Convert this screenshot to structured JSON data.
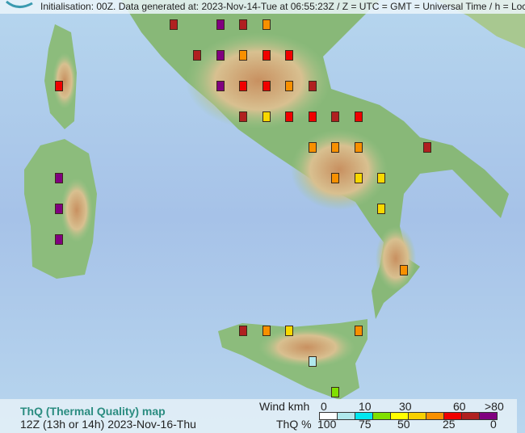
{
  "header": {
    "text": "Initialisation: 00Z. Data generated at: 2023-Nov-14-Tue at 06:55:23Z / Z = UTC = GMT = Universal Time / h = Local Time"
  },
  "legend": {
    "title": "ThQ (Thermal Quality) map",
    "subtitle_time": "12Z (13h or 14h)",
    "subtitle_date": "2023-Nov-16-Thu",
    "wind_label": "Wind kmh",
    "wind_ticks": [
      "0",
      "10",
      "30",
      "60",
      ">80"
    ],
    "thq_label": "ThQ %",
    "thq_ticks": [
      "100",
      "75",
      "50",
      "25",
      "0"
    ],
    "scale_colors": [
      "#ffffff",
      "#b0e8ec",
      "#00e8f0",
      "#80e000",
      "#ffff00",
      "#f8d000",
      "#f89000",
      "#f00000",
      "#b02020",
      "#800080"
    ]
  },
  "marker_classes": {
    "darkred": "#b02020",
    "purple": "#800080",
    "orange": "#f89000",
    "red": "#f00000",
    "yellow": "#f8d800",
    "lightcyan": "#b0e8ec",
    "green": "#80e000"
  },
  "markers": [
    "darkred",
    "purple",
    "darkred",
    "orange",
    "darkred",
    "purple",
    "orange",
    "red",
    "red",
    "red",
    "purple",
    "red",
    "red",
    "orange",
    "darkred",
    "darkred",
    "yellow",
    "red",
    "red",
    "darkred",
    "red",
    "orange",
    "orange",
    "orange",
    "darkred",
    "purple",
    "orange",
    "yellow",
    "yellow",
    "purple",
    "yellow",
    "purple",
    "orange",
    "darkred",
    "orange",
    "yellow",
    "orange",
    "lightcyan",
    "green"
  ]
}
